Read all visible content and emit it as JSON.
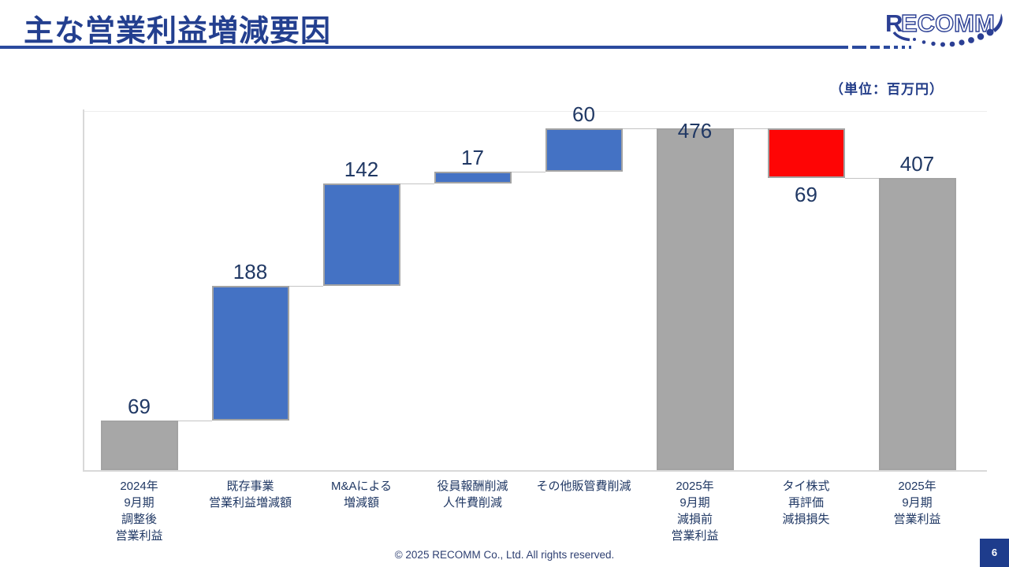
{
  "header": {
    "title": "主な営業利益増減要因",
    "logo_text_r": "R",
    "logo_text_rest": "ECOMM"
  },
  "unit_label": "（単位：百万円）",
  "footer": {
    "copyright": "© 2025 RECOMM Co., Ltd. All rights reserved.",
    "page_number": "6"
  },
  "chart_data": {
    "type": "waterfall",
    "title": "主な営業利益増減要因",
    "unit": "百万円",
    "ylim": [
      0,
      500
    ],
    "grid": "top-line-only",
    "legend": "none",
    "colors": {
      "increase": "#4472c4",
      "decrease": "#fe0505",
      "total": "#a7a7a7",
      "bar_border": "#a3a3a3",
      "connector": "#c4c4c4",
      "axis": "#d9d9d9",
      "value_label": "#203864",
      "category_label": "#203864"
    },
    "bars": [
      {
        "category_lines": [
          "2024年",
          "9月期",
          "調整後",
          "営業利益"
        ],
        "value": 69,
        "kind": "total",
        "value_label": "69",
        "value_label_position": "above"
      },
      {
        "category_lines": [
          "既存事業",
          "営業利益増減額"
        ],
        "value": 188,
        "kind": "increase",
        "value_label": "188",
        "value_label_position": "above"
      },
      {
        "category_lines": [
          "M&Aによる",
          "増減額"
        ],
        "value": 142,
        "kind": "increase",
        "value_label": "142",
        "value_label_position": "above"
      },
      {
        "category_lines": [
          "役員報酬削減",
          "人件費削減"
        ],
        "value": 17,
        "kind": "increase",
        "value_label": "17",
        "value_label_position": "above"
      },
      {
        "category_lines": [
          "その他販管費削減"
        ],
        "value": 60,
        "kind": "increase",
        "value_label": "60",
        "value_label_position": "above"
      },
      {
        "category_lines": [
          "2025年",
          "9月期",
          "減損前",
          "営業利益"
        ],
        "value": 476,
        "kind": "total",
        "value_label": "476",
        "value_label_position": "inside-top"
      },
      {
        "category_lines": [
          "タイ株式",
          "再評価",
          "減損損失"
        ],
        "value": -69,
        "kind": "decrease",
        "value_label": "69",
        "value_label_position": "below"
      },
      {
        "category_lines": [
          "2025年",
          "9月期",
          "営業利益"
        ],
        "value": 407,
        "kind": "total",
        "value_label": "407",
        "value_label_position": "above"
      }
    ]
  }
}
